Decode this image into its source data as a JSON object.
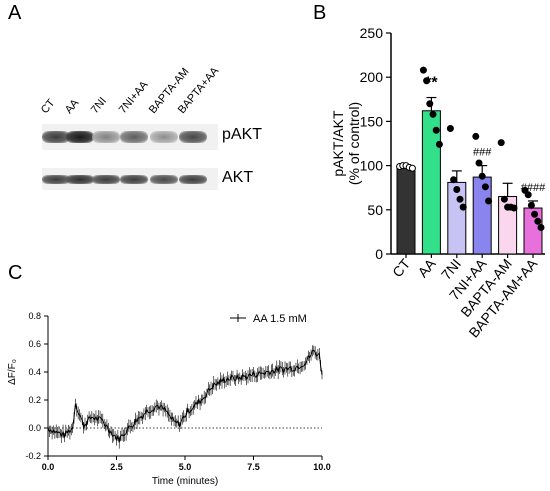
{
  "panel_a": {
    "letter": "A",
    "lane_labels": [
      "CT",
      "AA",
      "7NI",
      "7NI+AA",
      "BAPTA-AM",
      "BAPTA+AA"
    ],
    "band_labels": [
      "pAKT",
      "AKT"
    ],
    "pakt_intensity": [
      0.85,
      1.0,
      0.55,
      0.7,
      0.5,
      0.8
    ],
    "akt_intensity": [
      0.85,
      0.9,
      0.85,
      0.85,
      0.8,
      0.85
    ]
  },
  "panel_b": {
    "letter": "B"
  },
  "panel_c": {
    "letter": "C"
  },
  "chart_data": [
    {
      "type": "bar",
      "categories": [
        "CT",
        "AA",
        "7NI",
        "7NI+AA",
        "BAPTA-AM",
        "BAPTA-AM+AA"
      ],
      "values": [
        98,
        162,
        81,
        87,
        65,
        52
      ],
      "errors": [
        3,
        15,
        13,
        13,
        15,
        8
      ],
      "points": [
        [
          99,
          100,
          100,
          98,
          97
        ],
        [
          208,
          196,
          170,
          158,
          140,
          124
        ],
        [
          142,
          84,
          73,
          62,
          53
        ],
        [
          133,
          103,
          88,
          76,
          60
        ],
        [
          126,
          62,
          53,
          53,
          52
        ],
        [
          72,
          67,
          55,
          45,
          37,
          30
        ]
      ],
      "annotations": [
        "",
        "**",
        "",
        "###",
        "",
        "####"
      ],
      "bar_colors": [
        "#333333",
        "#33e08a",
        "#c8c3f5",
        "#8a84ee",
        "#fad7ee",
        "#e870dd"
      ],
      "ylabel": "pAKT/AKT\n(% of control)",
      "ylim": [
        0,
        250
      ],
      "yticks": [
        0,
        50,
        100,
        150,
        200,
        250
      ]
    },
    {
      "type": "line",
      "series": [
        {
          "name": "AA 1.5 mM"
        }
      ],
      "xlabel": "Time (minutes)",
      "ylabel": "ΔF/F₀",
      "xlim": [
        0,
        10
      ],
      "ylim": [
        -0.2,
        0.8
      ],
      "xticks": [
        "0.0",
        "2.5",
        "5.0",
        "7.5",
        "10.0"
      ],
      "yticks": [
        "-0.2",
        "0.0",
        "0.2",
        "0.4",
        "0.6",
        "0.8"
      ],
      "baseline": 0,
      "x_step": 0.05,
      "knots": [
        [
          0,
          0.0
        ],
        [
          0.3,
          -0.03
        ],
        [
          0.6,
          -0.05
        ],
        [
          0.9,
          0.0
        ],
        [
          1.0,
          0.18
        ],
        [
          1.1,
          0.12
        ],
        [
          1.3,
          0.02
        ],
        [
          1.6,
          0.08
        ],
        [
          2.0,
          0.05
        ],
        [
          2.4,
          -0.05
        ],
        [
          2.6,
          -0.08
        ],
        [
          2.8,
          -0.03
        ],
        [
          3.2,
          0.05
        ],
        [
          3.6,
          0.12
        ],
        [
          4.0,
          0.16
        ],
        [
          4.3,
          0.12
        ],
        [
          4.6,
          0.04
        ],
        [
          4.8,
          0.03
        ],
        [
          5.1,
          0.12
        ],
        [
          5.6,
          0.2
        ],
        [
          6.0,
          0.3
        ],
        [
          6.5,
          0.35
        ],
        [
          7.0,
          0.36
        ],
        [
          7.5,
          0.38
        ],
        [
          8.0,
          0.4
        ],
        [
          8.5,
          0.42
        ],
        [
          9.0,
          0.43
        ],
        [
          9.4,
          0.47
        ],
        [
          9.7,
          0.55
        ],
        [
          9.9,
          0.52
        ],
        [
          10.0,
          0.4
        ]
      ]
    }
  ]
}
